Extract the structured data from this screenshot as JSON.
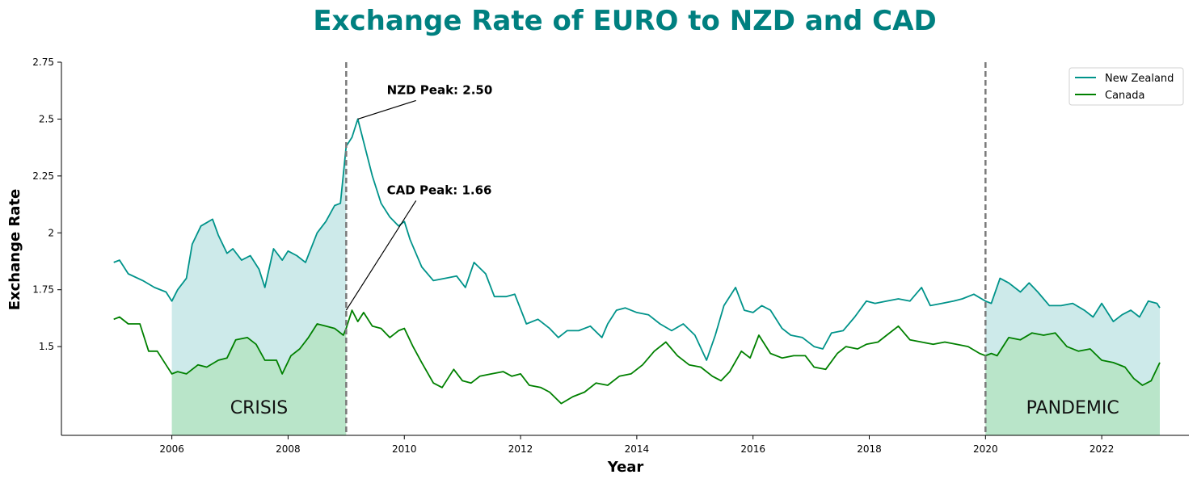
{
  "chart_data": {
    "type": "line",
    "title": "Exchange Rate of EURO to NZD and CAD",
    "title_color": "#008080",
    "xlabel": "Year",
    "ylabel": "Exchange Rate",
    "xlim": [
      2004.1,
      2023.5
    ],
    "ylim": [
      1.11,
      2.75
    ],
    "x_ticks": [
      2006,
      2008,
      2010,
      2012,
      2014,
      2016,
      2018,
      2020,
      2022
    ],
    "y_ticks": [
      1.5,
      1.75,
      2,
      2.25,
      2.5,
      2.75
    ],
    "y_tick_labels": [
      "1.5",
      "1.75",
      "2",
      "2.25",
      "2.5",
      "2.75"
    ],
    "grid": false,
    "legend": "top-right",
    "series": [
      {
        "name": "New Zealand",
        "color": "#00938a",
        "fill_color": "#cdeaea",
        "x": [
          2005.0,
          2005.1,
          2005.25,
          2005.5,
          2005.7,
          2005.9,
          2006.0,
          2006.1,
          2006.25,
          2006.35,
          2006.5,
          2006.7,
          2006.8,
          2006.95,
          2007.05,
          2007.2,
          2007.35,
          2007.5,
          2007.6,
          2007.75,
          2007.9,
          2008.0,
          2008.15,
          2008.3,
          2008.5,
          2008.65,
          2008.8,
          2008.9,
          2009.0,
          2009.1,
          2009.2,
          2009.3,
          2009.45,
          2009.6,
          2009.75,
          2009.9,
          2010.0,
          2010.1,
          2010.3,
          2010.5,
          2010.7,
          2010.9,
          2011.05,
          2011.2,
          2011.4,
          2011.55,
          2011.75,
          2011.9,
          2012.1,
          2012.3,
          2012.5,
          2012.65,
          2012.8,
          2013.0,
          2013.2,
          2013.4,
          2013.5,
          2013.65,
          2013.8,
          2014.0,
          2014.2,
          2014.4,
          2014.6,
          2014.8,
          2015.0,
          2015.2,
          2015.35,
          2015.5,
          2015.7,
          2015.85,
          2016.0,
          2016.15,
          2016.3,
          2016.5,
          2016.65,
          2016.85,
          2017.05,
          2017.2,
          2017.35,
          2017.55,
          2017.75,
          2017.95,
          2018.1,
          2018.3,
          2018.5,
          2018.7,
          2018.9,
          2019.05,
          2019.25,
          2019.45,
          2019.6,
          2019.8,
          2020.0,
          2020.1,
          2020.25,
          2020.4,
          2020.6,
          2020.75,
          2020.9,
          2021.1,
          2021.3,
          2021.5,
          2021.7,
          2021.85,
          2022.0,
          2022.2,
          2022.35,
          2022.5,
          2022.65,
          2022.8,
          2022.95,
          2023.0
        ],
        "values": [
          1.87,
          1.88,
          1.82,
          1.79,
          1.76,
          1.74,
          1.7,
          1.75,
          1.8,
          1.95,
          2.03,
          2.06,
          1.99,
          1.91,
          1.93,
          1.88,
          1.9,
          1.84,
          1.76,
          1.93,
          1.88,
          1.92,
          1.9,
          1.87,
          2.0,
          2.05,
          2.12,
          2.13,
          2.38,
          2.42,
          2.5,
          2.4,
          2.25,
          2.13,
          2.07,
          2.03,
          2.05,
          1.97,
          1.85,
          1.79,
          1.8,
          1.81,
          1.76,
          1.87,
          1.82,
          1.72,
          1.72,
          1.73,
          1.6,
          1.62,
          1.58,
          1.54,
          1.57,
          1.57,
          1.59,
          1.54,
          1.6,
          1.66,
          1.67,
          1.65,
          1.64,
          1.6,
          1.57,
          1.6,
          1.55,
          1.44,
          1.55,
          1.68,
          1.76,
          1.66,
          1.65,
          1.68,
          1.66,
          1.58,
          1.55,
          1.54,
          1.5,
          1.49,
          1.56,
          1.57,
          1.63,
          1.7,
          1.69,
          1.7,
          1.71,
          1.7,
          1.76,
          1.68,
          1.69,
          1.7,
          1.71,
          1.73,
          1.7,
          1.69,
          1.8,
          1.78,
          1.74,
          1.78,
          1.74,
          1.68,
          1.68,
          1.69,
          1.66,
          1.63,
          1.69,
          1.61,
          1.64,
          1.66,
          1.63,
          1.7,
          1.69,
          1.67
        ]
      },
      {
        "name": "Canada",
        "color": "#008000",
        "fill_color": "#b9e5c9",
        "x": [
          2005.0,
          2005.1,
          2005.25,
          2005.45,
          2005.6,
          2005.75,
          2005.9,
          2006.0,
          2006.1,
          2006.25,
          2006.45,
          2006.6,
          2006.8,
          2006.95,
          2007.1,
          2007.3,
          2007.45,
          2007.6,
          2007.8,
          2007.9,
          2008.05,
          2008.2,
          2008.35,
          2008.5,
          2008.65,
          2008.8,
          2008.95,
          2009.0,
          2009.1,
          2009.2,
          2009.3,
          2009.45,
          2009.6,
          2009.75,
          2009.9,
          2010.0,
          2010.15,
          2010.3,
          2010.5,
          2010.65,
          2010.85,
          2011.0,
          2011.15,
          2011.3,
          2011.5,
          2011.7,
          2011.85,
          2012.0,
          2012.15,
          2012.35,
          2012.5,
          2012.7,
          2012.9,
          2013.1,
          2013.3,
          2013.5,
          2013.7,
          2013.9,
          2014.1,
          2014.3,
          2014.5,
          2014.7,
          2014.9,
          2015.1,
          2015.3,
          2015.45,
          2015.6,
          2015.8,
          2015.95,
          2016.1,
          2016.3,
          2016.5,
          2016.7,
          2016.9,
          2017.05,
          2017.25,
          2017.45,
          2017.6,
          2017.8,
          2017.95,
          2018.15,
          2018.3,
          2018.5,
          2018.7,
          2018.9,
          2019.1,
          2019.3,
          2019.5,
          2019.7,
          2019.9,
          2020.0,
          2020.1,
          2020.2,
          2020.4,
          2020.6,
          2020.8,
          2021.0,
          2021.2,
          2021.4,
          2021.6,
          2021.8,
          2022.0,
          2022.2,
          2022.4,
          2022.55,
          2022.7,
          2022.85,
          2023.0
        ],
        "values": [
          1.62,
          1.63,
          1.6,
          1.6,
          1.48,
          1.48,
          1.42,
          1.38,
          1.39,
          1.38,
          1.42,
          1.41,
          1.44,
          1.45,
          1.53,
          1.54,
          1.51,
          1.44,
          1.44,
          1.38,
          1.46,
          1.49,
          1.54,
          1.6,
          1.59,
          1.58,
          1.55,
          1.58,
          1.66,
          1.61,
          1.65,
          1.59,
          1.58,
          1.54,
          1.57,
          1.58,
          1.5,
          1.43,
          1.34,
          1.32,
          1.4,
          1.35,
          1.34,
          1.37,
          1.38,
          1.39,
          1.37,
          1.38,
          1.33,
          1.32,
          1.3,
          1.25,
          1.28,
          1.3,
          1.34,
          1.33,
          1.37,
          1.38,
          1.42,
          1.48,
          1.52,
          1.46,
          1.42,
          1.41,
          1.37,
          1.35,
          1.39,
          1.48,
          1.45,
          1.55,
          1.47,
          1.45,
          1.46,
          1.46,
          1.41,
          1.4,
          1.47,
          1.5,
          1.49,
          1.51,
          1.52,
          1.55,
          1.59,
          1.53,
          1.52,
          1.51,
          1.52,
          1.51,
          1.5,
          1.47,
          1.46,
          1.47,
          1.46,
          1.54,
          1.53,
          1.56,
          1.55,
          1.56,
          1.5,
          1.48,
          1.49,
          1.44,
          1.43,
          1.41,
          1.36,
          1.33,
          1.35,
          1.43
        ]
      }
    ],
    "vlines": [
      2009.0,
      2020.0
    ],
    "shaded_regions": [
      {
        "label": "CRISIS",
        "x_start": 2006.0,
        "x_end": 2009.0
      },
      {
        "label": "PANDEMIC",
        "x_start": 2020.0,
        "x_end": 2023.0
      }
    ],
    "annotations": [
      {
        "text": "NZD Peak: 2.50",
        "x": 2009.2,
        "y": 2.5,
        "text_x": 2009.7,
        "text_y": 2.61
      },
      {
        "text": "CAD Peak: 1.66",
        "x": 2009.0,
        "y": 1.66,
        "text_x": 2009.7,
        "text_y": 2.17
      }
    ]
  }
}
